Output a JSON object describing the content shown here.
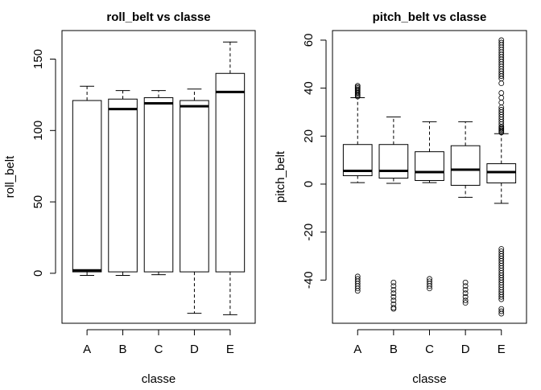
{
  "chart_data": [
    {
      "type": "box",
      "title": "roll_belt vs classe",
      "xlabel": "classe",
      "ylabel": "roll_belt",
      "categories": [
        "A",
        "B",
        "C",
        "D",
        "E"
      ],
      "yticks": [
        0,
        50,
        100,
        150
      ],
      "ylim": [
        -35,
        170
      ],
      "grid": false,
      "boxes": [
        {
          "category": "A",
          "whisker_low": -1.5,
          "q1": 1,
          "median": 2,
          "q3": 121,
          "whisker_high": 131,
          "outliers": []
        },
        {
          "category": "B",
          "whisker_low": -1.5,
          "q1": 1,
          "median": 115,
          "q3": 122,
          "whisker_high": 128,
          "outliers": []
        },
        {
          "category": "C",
          "whisker_low": -1,
          "q1": 1,
          "median": 119,
          "q3": 123,
          "whisker_high": 128,
          "outliers": []
        },
        {
          "category": "D",
          "whisker_low": -28,
          "q1": 1,
          "median": 117,
          "q3": 121,
          "whisker_high": 129,
          "outliers": []
        },
        {
          "category": "E",
          "whisker_low": -29,
          "q1": 1,
          "median": 127,
          "q3": 140,
          "whisker_high": 162,
          "outliers": []
        }
      ]
    },
    {
      "type": "box",
      "title": "pitch_belt vs classe",
      "xlabel": "classe",
      "ylabel": "pitch_belt",
      "categories": [
        "A",
        "B",
        "C",
        "D",
        "E"
      ],
      "yticks": [
        -40,
        -20,
        0,
        20,
        40,
        60
      ],
      "ylim": [
        -58,
        64
      ],
      "grid": false,
      "boxes": [
        {
          "category": "A",
          "whisker_low": 0.6,
          "q1": 3.5,
          "median": 5.5,
          "q3": 16.5,
          "whisker_high": 36,
          "outliers": [
            36.5,
            37,
            37.5,
            38,
            38.5,
            39,
            39.5,
            40,
            40.5,
            41,
            -38.5,
            -39.5,
            -40.5,
            -41.5,
            -42.5,
            -43.5,
            -44.5
          ]
        },
        {
          "category": "B",
          "whisker_low": 0.3,
          "q1": 2.5,
          "median": 5.5,
          "q3": 16.5,
          "whisker_high": 28,
          "outliers": [
            -41,
            -42.5,
            -44,
            -45.5,
            -47,
            -48.5,
            -50,
            -51.5,
            -52
          ]
        },
        {
          "category": "C",
          "whisker_low": 0.6,
          "q1": 1.5,
          "median": 5,
          "q3": 13.5,
          "whisker_high": 26,
          "outliers": [
            -39.5,
            -40.5,
            -41.5,
            -42.5,
            -43.5
          ]
        },
        {
          "category": "D",
          "whisker_low": -5.5,
          "q1": -0.5,
          "median": 6,
          "q3": 16,
          "whisker_high": 26,
          "outliers": [
            -41,
            -42.5,
            -44,
            -45.5,
            -47,
            -48.5,
            -49.5
          ]
        },
        {
          "category": "E",
          "whisker_low": -8,
          "q1": 0.5,
          "median": 5,
          "q3": 8.5,
          "whisker_high": 21,
          "outliers": [
            21.5,
            22,
            22.5,
            23,
            23.5,
            24,
            25,
            26,
            27,
            28,
            29,
            30,
            31,
            32,
            34,
            36,
            38,
            42,
            44,
            45,
            46,
            47,
            48,
            49,
            50,
            51,
            52,
            53,
            54,
            55,
            56,
            57,
            58,
            59,
            60,
            -27,
            -28,
            -29,
            -30,
            -31,
            -32,
            -33,
            -34,
            -35,
            -36,
            -37,
            -38,
            -39,
            -40,
            -41,
            -42,
            -43,
            -44,
            -45,
            -46,
            -47,
            -48,
            -52,
            -53,
            -54
          ]
        }
      ]
    }
  ]
}
